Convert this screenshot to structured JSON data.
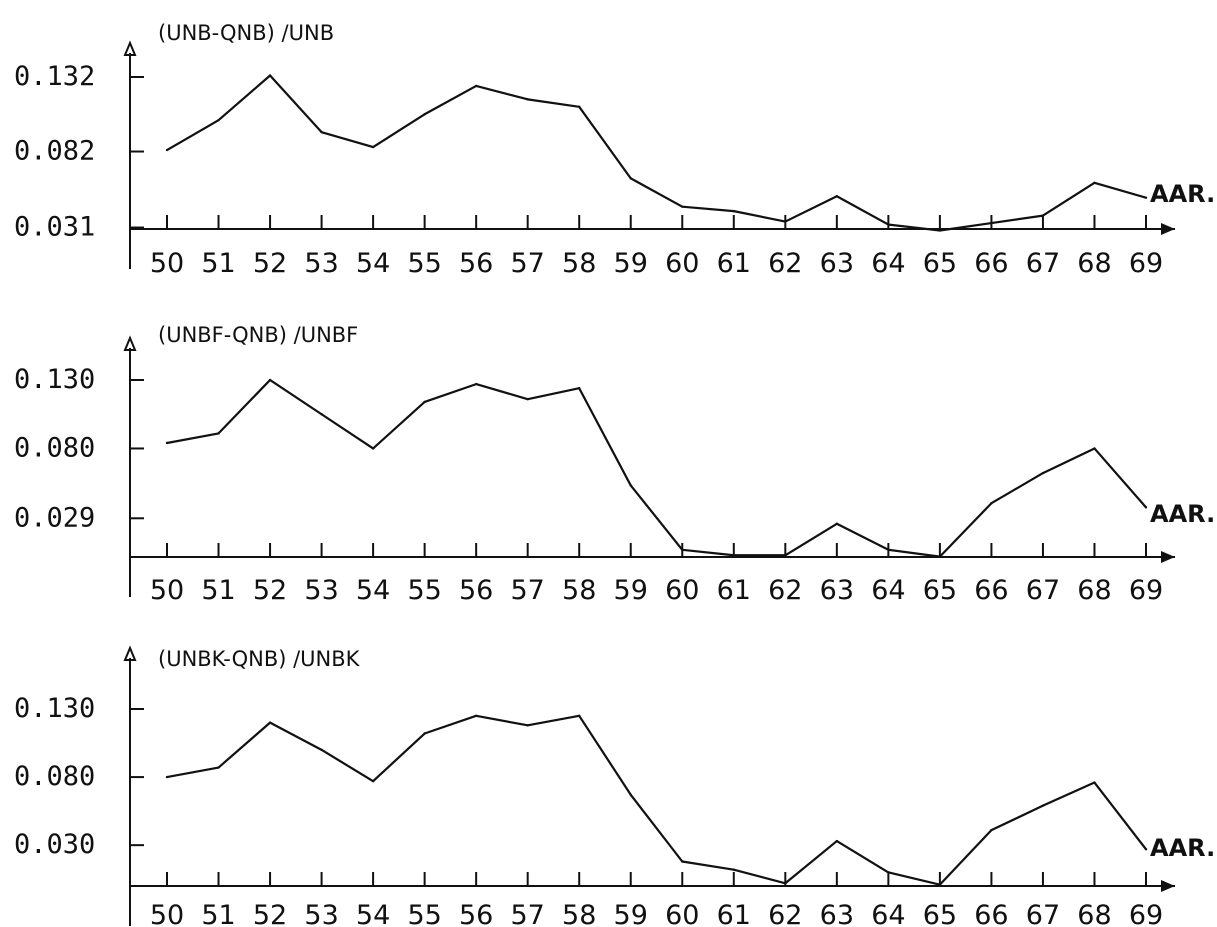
{
  "chart_data": [
    {
      "type": "line",
      "title": "(UNB-QNB) /UNB",
      "xlabel": "AAR.",
      "ylabel": "",
      "x": [
        50,
        51,
        52,
        53,
        54,
        55,
        56,
        57,
        58,
        59,
        60,
        61,
        62,
        63,
        64,
        65,
        66,
        67,
        68,
        69
      ],
      "x_tick_labels": [
        "50",
        "51",
        "52",
        "53",
        "54",
        "55",
        "56",
        "57",
        "58",
        "59",
        "60",
        "61",
        "62",
        "63",
        "64",
        "65",
        "66",
        "67",
        "68",
        "69"
      ],
      "y_ticks": [
        0.031,
        0.082,
        0.132
      ],
      "y_tick_labels": [
        "0.031",
        "0.082",
        "0.132"
      ],
      "ylim": [
        0.028,
        0.132
      ],
      "grid": false,
      "series": [
        {
          "values": [
            0.083,
            0.103,
            0.133,
            0.095,
            0.085,
            0.107,
            0.126,
            0.117,
            0.112,
            0.064,
            0.045,
            0.042,
            0.035,
            0.052,
            0.033,
            0.029,
            0.034,
            0.039,
            0.061,
            0.051
          ]
        }
      ]
    },
    {
      "type": "line",
      "title": "(UNBF-QNB) /UNBF",
      "xlabel": "AAR.",
      "ylabel": "",
      "x": [
        50,
        51,
        52,
        53,
        54,
        55,
        56,
        57,
        58,
        59,
        60,
        61,
        62,
        63,
        64,
        65,
        66,
        67,
        68,
        69
      ],
      "x_tick_labels": [
        "50",
        "51",
        "52",
        "53",
        "54",
        "55",
        "56",
        "57",
        "58",
        "59",
        "60",
        "61",
        "62",
        "63",
        "64",
        "65",
        "66",
        "67",
        "68",
        "69"
      ],
      "y_ticks": [
        0.029,
        0.08,
        0.13
      ],
      "y_tick_labels": [
        "0.029",
        "0.080",
        "0.130"
      ],
      "ylim": [
        0.0,
        0.13
      ],
      "grid": false,
      "series": [
        {
          "values": [
            0.084,
            0.091,
            0.13,
            0.105,
            0.08,
            0.114,
            0.127,
            0.116,
            0.124,
            0.053,
            0.006,
            0.002,
            0.002,
            0.025,
            0.006,
            0.001,
            0.04,
            0.062,
            0.08,
            0.037
          ]
        }
      ]
    },
    {
      "type": "line",
      "title": "(UNBK-QNB) /UNBK",
      "xlabel": "AAR.",
      "ylabel": "",
      "x": [
        50,
        51,
        52,
        53,
        54,
        55,
        56,
        57,
        58,
        59,
        60,
        61,
        62,
        63,
        64,
        65,
        66,
        67,
        68,
        69
      ],
      "x_tick_labels": [
        "50",
        "51",
        "52",
        "53",
        "54",
        "55",
        "56",
        "57",
        "58",
        "59",
        "60",
        "61",
        "62",
        "63",
        "64",
        "65",
        "66",
        "67",
        "68",
        "69"
      ],
      "y_ticks": [
        0.03,
        0.08,
        0.13
      ],
      "y_tick_labels": [
        "0.030",
        "0.080",
        "0.130"
      ],
      "ylim": [
        0.0,
        0.13
      ],
      "grid": false,
      "series": [
        {
          "values": [
            0.08,
            0.087,
            0.12,
            0.1,
            0.077,
            0.112,
            0.125,
            0.118,
            0.125,
            0.067,
            0.018,
            0.012,
            0.002,
            0.033,
            0.01,
            0.001,
            0.041,
            0.059,
            0.076,
            0.027
          ]
        }
      ]
    }
  ]
}
